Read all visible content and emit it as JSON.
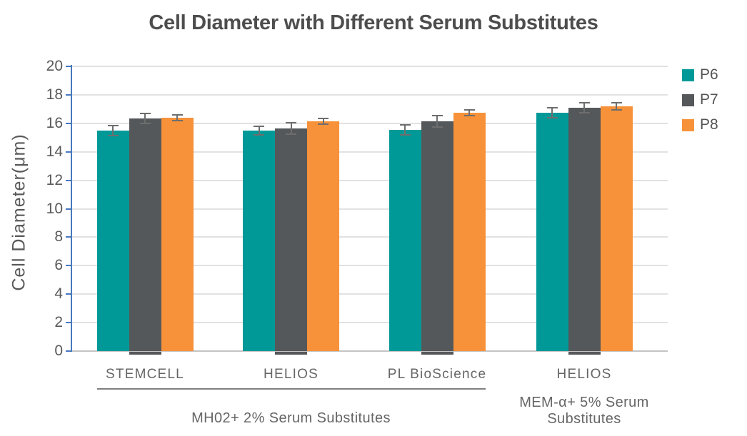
{
  "chart_data": {
    "type": "bar",
    "title": "Cell Diameter with Different Serum Substitutes",
    "ylabel": "Cell Diameter(μm)",
    "xlabel": "",
    "ylim": [
      0,
      20
    ],
    "ytick_step": 2,
    "grid": true,
    "legend_position": "top-right",
    "error_bars": true,
    "categories": [
      "STEMCELL",
      "HELIOS",
      "PL BioScience",
      "HELIOS"
    ],
    "series": [
      {
        "name": "P6",
        "color": "#009997",
        "values": [
          15.5,
          15.5,
          15.55,
          16.75
        ],
        "errors": [
          0.35,
          0.3,
          0.35,
          0.35
        ]
      },
      {
        "name": "P7",
        "color": "#55585a",
        "values": [
          16.35,
          15.65,
          16.15,
          17.1
        ],
        "errors": [
          0.35,
          0.4,
          0.4,
          0.35
        ]
      },
      {
        "name": "P8",
        "color": "#f7923a",
        "values": [
          16.4,
          16.15,
          16.75,
          17.2
        ],
        "errors": [
          0.2,
          0.2,
          0.2,
          0.25
        ]
      }
    ],
    "group_annotations": [
      {
        "label": "MH02+ 2% Serum Substitutes",
        "categories_spanned": [
          0,
          1,
          2
        ],
        "underline": true
      },
      {
        "label": "MEM-α+ 5% Serum Substitutes",
        "categories_spanned": [
          3
        ],
        "underline": false
      }
    ],
    "yticks": [
      0,
      2,
      4,
      6,
      8,
      10,
      12,
      14,
      16,
      18,
      20
    ]
  },
  "colors": {
    "axis_line": "#4878be",
    "gridline": "#e2e2e2",
    "baseline": "#c4c4c4",
    "error_bar": "#6e6e6e",
    "title_text": "#4d4d4d",
    "tick_text": "#595959",
    "category_text": "#666666"
  }
}
